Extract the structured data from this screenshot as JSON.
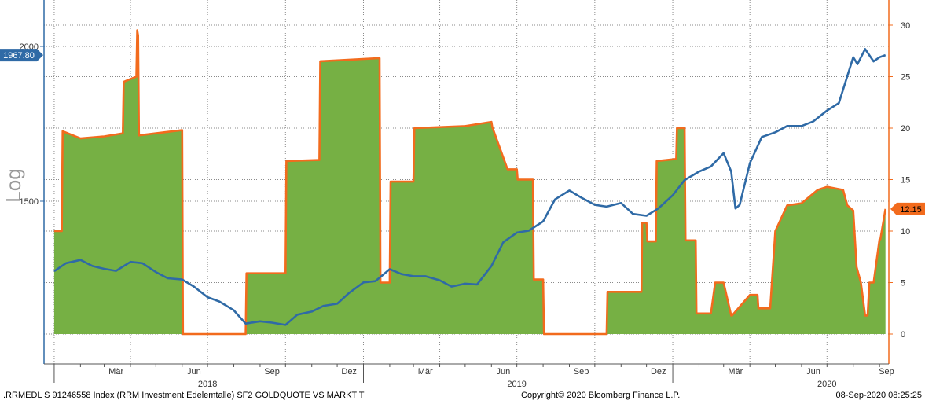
{
  "chart_data": {
    "type": "line",
    "y_label_left": "Log",
    "left_axis": {
      "scale": "log",
      "ticks": [
        1500,
        2000
      ]
    },
    "right_axis": {
      "scale": "linear",
      "ylim": [
        -3,
        32
      ],
      "ticks": [
        0,
        5,
        10,
        15,
        20,
        25,
        30
      ]
    },
    "x_ticks": [
      "Mär",
      "Jun",
      "Sep",
      "Dez",
      "Mär",
      "Jun",
      "Sep",
      "Dez",
      "Mär",
      "Jun",
      "Sep"
    ],
    "year_labels": [
      "2018",
      "2019",
      "2020"
    ],
    "grid": true,
    "series": [
      {
        "name": "",
        "axis": "right",
        "render": "area",
        "color": "#f26b1d",
        "fill": "#76b044",
        "last_value_label": "12.15",
        "x": [
          "2018-01-01",
          "2018-01-10",
          "2018-01-11",
          "2018-02-01",
          "2018-03-01",
          "2018-03-23",
          "2018-03-24",
          "2018-04-08",
          "2018-04-09",
          "2018-04-10",
          "2018-04-11",
          "2018-06-01",
          "2018-06-02",
          "2018-08-15",
          "2018-08-16",
          "2018-10-01",
          "2018-10-02",
          "2018-11-10",
          "2018-11-11",
          "2019-01-20",
          "2019-01-21",
          "2019-02-01",
          "2019-02-02",
          "2019-03-01",
          "2019-03-02",
          "2019-05-01",
          "2019-06-01",
          "2019-06-02",
          "2019-06-20",
          "2019-07-01",
          "2019-07-02",
          "2019-07-20",
          "2019-07-21",
          "2019-08-01",
          "2019-08-02",
          "2019-10-15",
          "2019-10-16",
          "2019-11-25",
          "2019-11-26",
          "2019-12-01",
          "2019-12-02",
          "2019-12-12",
          "2019-12-13",
          "2020-01-05",
          "2020-01-06",
          "2020-01-15",
          "2020-01-16",
          "2020-01-28",
          "2020-01-29",
          "2020-02-15",
          "2020-02-20",
          "2020-03-01",
          "2020-03-10",
          "2020-03-11",
          "2020-04-01",
          "2020-04-10",
          "2020-04-11",
          "2020-04-25",
          "2020-05-01",
          "2020-05-15",
          "2020-06-01",
          "2020-06-20",
          "2020-07-01",
          "2020-07-20",
          "2020-07-25",
          "2020-08-01",
          "2020-08-05",
          "2020-08-10",
          "2020-08-15",
          "2020-08-18",
          "2020-08-20",
          "2020-08-25",
          "2020-09-01",
          "2020-09-02",
          "2020-09-08"
        ],
        "values": [
          10,
          10,
          19.7,
          19,
          19.2,
          19.5,
          24.5,
          25,
          29.5,
          29,
          19.3,
          19.8,
          0,
          0,
          5.9,
          5.9,
          16.8,
          16.9,
          26.5,
          26.8,
          5,
          5,
          14.8,
          14.8,
          20,
          20.2,
          20.6,
          20.1,
          16,
          16,
          15,
          15,
          5.3,
          5.3,
          0,
          0,
          4.1,
          4.1,
          10.8,
          10.8,
          9,
          9,
          16.8,
          17,
          20,
          20,
          9.1,
          9.1,
          2,
          2,
          5,
          5,
          1.8,
          1.8,
          3.8,
          3.8,
          2.5,
          2.5,
          10,
          12.5,
          12.7,
          14,
          14.3,
          14,
          12.5,
          12,
          6.5,
          5,
          1.8,
          1.8,
          5,
          5,
          9.2,
          9.2,
          12.15
        ]
      },
      {
        "name": "",
        "axis": "left",
        "render": "line",
        "color": "#2f6aa6",
        "last_value_label": "1967.80",
        "x": [
          "2018-01-01",
          "2018-01-15",
          "2018-02-01",
          "2018-02-15",
          "2018-03-01",
          "2018-03-15",
          "2018-04-01",
          "2018-04-15",
          "2018-05-01",
          "2018-05-15",
          "2018-06-01",
          "2018-06-15",
          "2018-07-01",
          "2018-07-15",
          "2018-08-01",
          "2018-08-15",
          "2018-09-01",
          "2018-09-15",
          "2018-10-01",
          "2018-10-15",
          "2018-11-01",
          "2018-11-15",
          "2018-12-01",
          "2018-12-15",
          "2019-01-01",
          "2019-01-15",
          "2019-02-01",
          "2019-02-15",
          "2019-03-01",
          "2019-03-15",
          "2019-04-01",
          "2019-04-15",
          "2019-05-01",
          "2019-05-15",
          "2019-06-01",
          "2019-06-15",
          "2019-07-01",
          "2019-07-15",
          "2019-08-01",
          "2019-08-15",
          "2019-09-01",
          "2019-09-15",
          "2019-10-01",
          "2019-10-15",
          "2019-11-01",
          "2019-11-15",
          "2019-12-01",
          "2019-12-15",
          "2020-01-01",
          "2020-01-15",
          "2020-02-01",
          "2020-02-15",
          "2020-03-01",
          "2020-03-10",
          "2020-03-15",
          "2020-03-20",
          "2020-04-01",
          "2020-04-15",
          "2020-05-01",
          "2020-05-15",
          "2020-06-01",
          "2020-06-15",
          "2020-07-01",
          "2020-07-15",
          "2020-08-01",
          "2020-08-06",
          "2020-08-15",
          "2020-08-25",
          "2020-09-01",
          "2020-09-08"
        ],
        "values": [
          1317,
          1337,
          1345,
          1330,
          1323,
          1318,
          1340,
          1337,
          1315,
          1300,
          1297,
          1280,
          1255,
          1245,
          1225,
          1195,
          1200,
          1197,
          1192,
          1215,
          1222,
          1235,
          1240,
          1265,
          1290,
          1293,
          1322,
          1310,
          1305,
          1305,
          1295,
          1280,
          1287,
          1285,
          1330,
          1390,
          1415,
          1420,
          1445,
          1505,
          1530,
          1510,
          1490,
          1485,
          1495,
          1465,
          1460,
          1480,
          1517,
          1560,
          1585,
          1600,
          1640,
          1585,
          1480,
          1490,
          1610,
          1690,
          1705,
          1725,
          1725,
          1740,
          1775,
          1800,
          1960,
          1935,
          1990,
          1945,
          1960,
          1967.8
        ]
      }
    ]
  },
  "footer": {
    "left": ".RRMEDL S 91246558 Index (RRM Investment Edelemtalle) SF2 GOLDQUOTE VS MARKT  T",
    "middle": "Copyright© 2020 Bloomberg Finance L.P.",
    "right": "08-Sep-2020  08:25:25"
  }
}
